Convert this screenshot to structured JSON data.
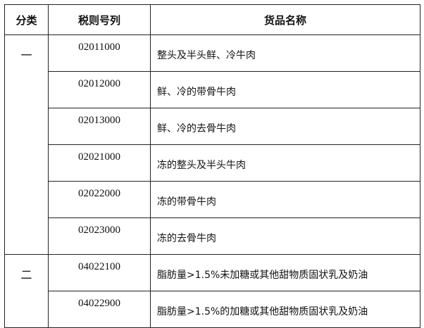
{
  "headers": {
    "category": "分类",
    "code": "税则号列",
    "name": "货品名称"
  },
  "groups": [
    {
      "category": "一",
      "rows": [
        {
          "code": "02011000",
          "name": "整头及半头鲜、冷牛肉"
        },
        {
          "code": "02012000",
          "name": "鲜、冷的带骨牛肉"
        },
        {
          "code": "02013000",
          "name": "鲜、冷的去骨牛肉"
        },
        {
          "code": "02021000",
          "name": "冻的整头及半头牛肉"
        },
        {
          "code": "02022000",
          "name": "冻的带骨牛肉"
        },
        {
          "code": "02023000",
          "name": "冻的去骨牛肉"
        }
      ]
    },
    {
      "category": "二",
      "rows": [
        {
          "code": "04022100",
          "name": "脂肪量>1.5%未加糖或其他甜物质固状乳及奶油"
        },
        {
          "code": "04022900",
          "name": "脂肪量>1.5%的加糖或其他甜物质固状乳及奶油"
        }
      ]
    }
  ]
}
